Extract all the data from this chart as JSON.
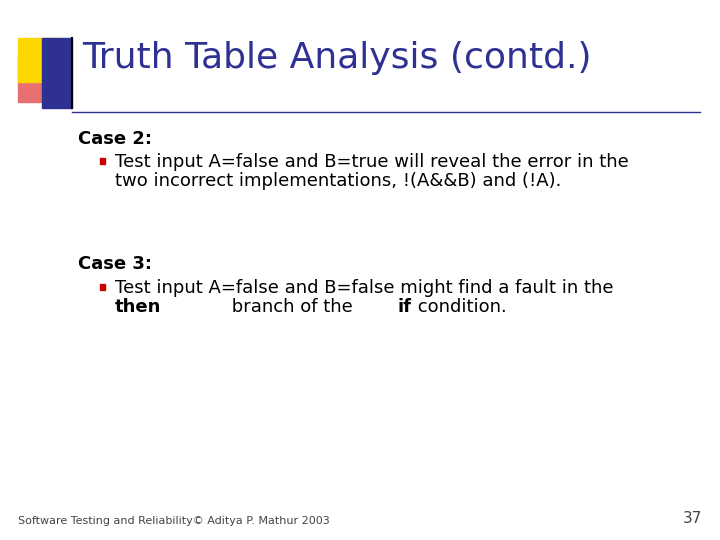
{
  "title": "Truth Table Analysis (contd.)",
  "title_color": "#2E3192",
  "title_fontsize": 26,
  "background_color": "#FFFFFF",
  "case2_label": "Case 2:",
  "case2_line1": "Test input A=false and B=true will reveal the error in the",
  "case2_line2": "two incorrect implementations, !(A&&B) and (!A).",
  "case3_label": "Case 3:",
  "case3_line1": "Test input A=false and B=false might find a fault in the",
  "case3_bold1": "then",
  "case3_mid": " branch of the ",
  "case3_bold2": "if",
  "case3_end": " condition.",
  "footer": "Software Testing and Reliability© Aditya P. Mathur 2003",
  "page_number": "37",
  "label_fontsize": 13,
  "bullet_fontsize": 13,
  "footer_fontsize": 8,
  "bullet_color": "#CC0000",
  "text_color": "#000000",
  "label_color": "#000000",
  "deco_yellow": "#FFD700",
  "deco_red": "#E87070",
  "deco_blue": "#2E3192",
  "line_color": "#2E3192"
}
